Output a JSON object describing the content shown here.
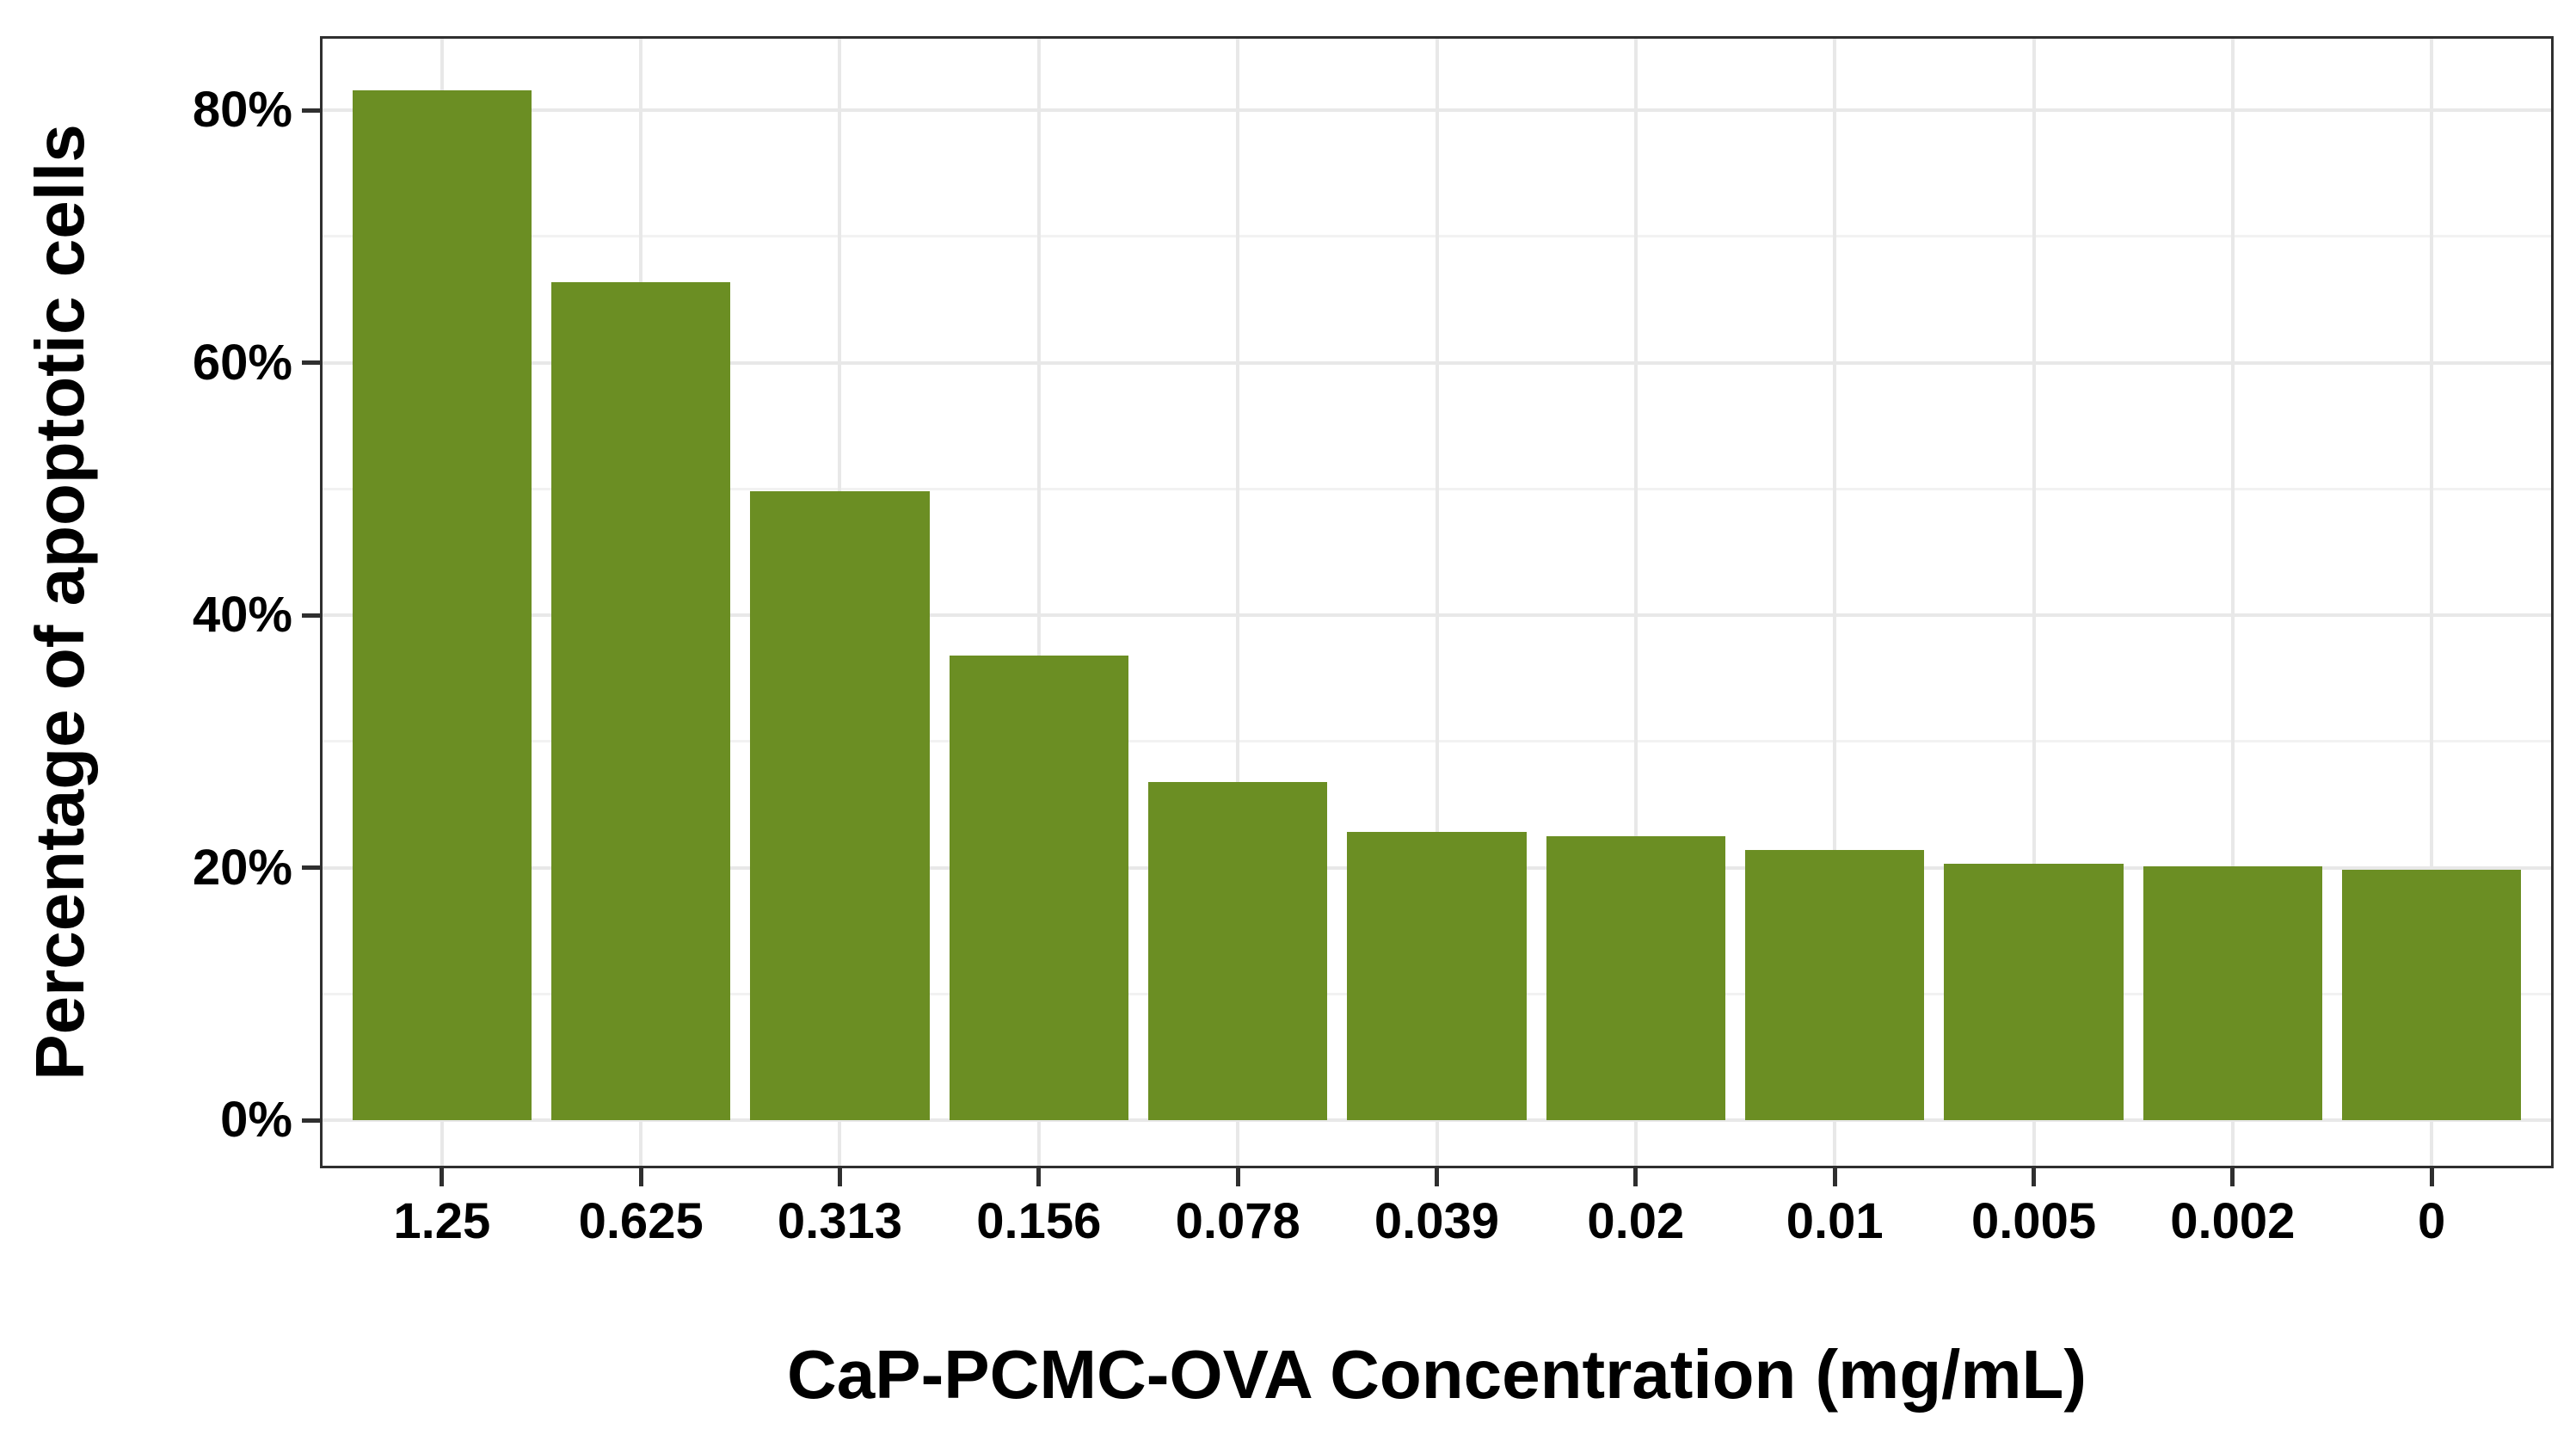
{
  "figure": {
    "background": "#ffffff"
  },
  "chart_data": {
    "type": "bar",
    "categories": [
      "1.25",
      "0.625",
      "0.313",
      "0.156",
      "0.078",
      "0.039",
      "0.02",
      "0.01",
      "0.005",
      "0.002",
      "0"
    ],
    "values": [
      81.6,
      66.4,
      49.8,
      36.8,
      26.8,
      22.8,
      22.5,
      21.4,
      20.3,
      20.1,
      19.8
    ],
    "title": "",
    "xlabel": "CaP-PCMC-OVA Concentration (mg/mL)",
    "ylabel": "Percentage of apoptotic cells",
    "ylim": [
      0,
      85.7
    ],
    "yticks": [
      0,
      20,
      40,
      60,
      80
    ],
    "ytick_labels": [
      "0%",
      "20%",
      "40%",
      "60%",
      "80%"
    ],
    "yticks_minor": [
      10,
      30,
      50,
      70
    ],
    "grid": "horizontal major+minor, vertical major at category centers",
    "legend": "none",
    "bar_color": "#6B8E23",
    "bar_width_fraction": 0.9,
    "colors": {
      "grid_major": "#e8e8e8",
      "grid_minor": "#f2f2f2",
      "axis_border": "#2f2f2f",
      "tick": "#2f2f2f",
      "text": "#000000"
    }
  }
}
